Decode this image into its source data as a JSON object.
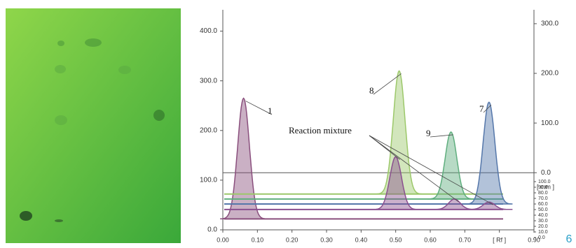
{
  "chart_data": {
    "type": "densitogram",
    "ylim": [
      0,
      443
    ],
    "yticks": [
      {
        "value": 0,
        "label": "0.0"
      },
      {
        "value": 100,
        "label": "100.0"
      },
      {
        "value": 200,
        "label": "200.0"
      },
      {
        "value": 300,
        "label": "300.0"
      },
      {
        "value": 400,
        "label": "400.0"
      }
    ],
    "y2lim": [
      -115,
      328
    ],
    "y2ticks": [
      {
        "value": 0,
        "label": "0.0"
      },
      {
        "value": 100,
        "label": "100.0"
      },
      {
        "value": 200,
        "label": "200.0"
      },
      {
        "value": 300,
        "label": "300.0"
      }
    ],
    "xlim": [
      0,
      0.9
    ],
    "xticks": [
      {
        "value": 0,
        "label": "0.00"
      },
      {
        "value": 0.1,
        "label": "0.10"
      },
      {
        "value": 0.2,
        "label": "0.20"
      },
      {
        "value": 0.3,
        "label": "0.30"
      },
      {
        "value": 0.4,
        "label": "0.40"
      },
      {
        "value": 0.5,
        "label": "0.50"
      },
      {
        "value": 0.6,
        "label": "0.60"
      },
      {
        "value": 0.7,
        "label": "0.70"
      },
      {
        "value": 0.8,
        "label": "[ Rf ]"
      },
      {
        "value": 0.9,
        "label": "0.90"
      }
    ],
    "mm_label": "[ mm ]",
    "mm_lim": [
      0,
      100
    ],
    "mm_ticks": [
      {
        "value": 100,
        "label": "100.0"
      },
      {
        "value": 90,
        "label": "90.0"
      },
      {
        "value": 80,
        "label": "80.0"
      },
      {
        "value": 70,
        "label": "70.0"
      },
      {
        "value": 60,
        "label": "60.0"
      },
      {
        "value": 50,
        "label": "50.0"
      },
      {
        "value": 40,
        "label": "40.0"
      },
      {
        "value": 30,
        "label": "30.0"
      },
      {
        "value": 20,
        "label": "20.0"
      },
      {
        "value": 10,
        "label": "10.0"
      },
      {
        "value": 0,
        "label": "0.0"
      }
    ],
    "series": [
      {
        "name": "1",
        "color": "#8a4f7d",
        "baseline": 22,
        "peaks": [
          {
            "x": 0.06,
            "y": 265
          }
        ]
      },
      {
        "name": "8",
        "color": "#9cc86a",
        "baseline": 72,
        "peaks": [
          {
            "x": 0.51,
            "y": 320
          }
        ]
      },
      {
        "name": "9",
        "color": "#5fae7e",
        "baseline": 62,
        "peaks": [
          {
            "x": 0.66,
            "y": 197
          }
        ]
      },
      {
        "name": "7",
        "color": "#5577aa",
        "baseline": 52,
        "peaks": [
          {
            "x": 0.77,
            "y": 257
          }
        ]
      },
      {
        "name": "Reaction mixture",
        "color": "#8a4f8f",
        "baseline": 41,
        "peaks": [
          {
            "x": 0.5,
            "y": 147
          },
          {
            "x": 0.67,
            "y": 62
          },
          {
            "x": 0.77,
            "y": 56
          }
        ]
      }
    ],
    "figure_number": "6"
  }
}
